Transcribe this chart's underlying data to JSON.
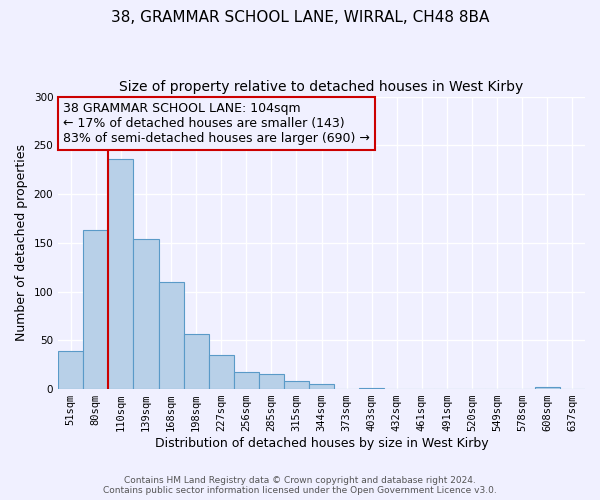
{
  "title": "38, GRAMMAR SCHOOL LANE, WIRRAL, CH48 8BA",
  "subtitle": "Size of property relative to detached houses in West Kirby",
  "xlabel": "Distribution of detached houses by size in West Kirby",
  "ylabel": "Number of detached properties",
  "categories": [
    "51sqm",
    "80sqm",
    "110sqm",
    "139sqm",
    "168sqm",
    "198sqm",
    "227sqm",
    "256sqm",
    "285sqm",
    "315sqm",
    "344sqm",
    "373sqm",
    "403sqm",
    "432sqm",
    "461sqm",
    "491sqm",
    "520sqm",
    "549sqm",
    "578sqm",
    "608sqm",
    "637sqm"
  ],
  "values": [
    39,
    163,
    236,
    154,
    110,
    56,
    35,
    18,
    15,
    8,
    5,
    0,
    1,
    0,
    0,
    0,
    0,
    0,
    0,
    2,
    0
  ],
  "bar_color": "#b8d0e8",
  "bar_edge_color": "#5a9ac8",
  "vline_x_index": 2,
  "vline_color": "#cc0000",
  "annotation_lines": [
    "38 GRAMMAR SCHOOL LANE: 104sqm",
    "← 17% of detached houses are smaller (143)",
    "83% of semi-detached houses are larger (690) →"
  ],
  "annotation_box_edge": "#cc0000",
  "ylim": [
    0,
    300
  ],
  "yticks": [
    0,
    50,
    100,
    150,
    200,
    250,
    300
  ],
  "footer_line1": "Contains HM Land Registry data © Crown copyright and database right 2024.",
  "footer_line2": "Contains public sector information licensed under the Open Government Licence v3.0.",
  "bg_color": "#f0f0ff",
  "grid_color": "#ffffff",
  "title_fontsize": 11,
  "subtitle_fontsize": 10,
  "axis_label_fontsize": 9,
  "tick_fontsize": 7.5,
  "annotation_fontsize": 9,
  "footer_fontsize": 6.5
}
